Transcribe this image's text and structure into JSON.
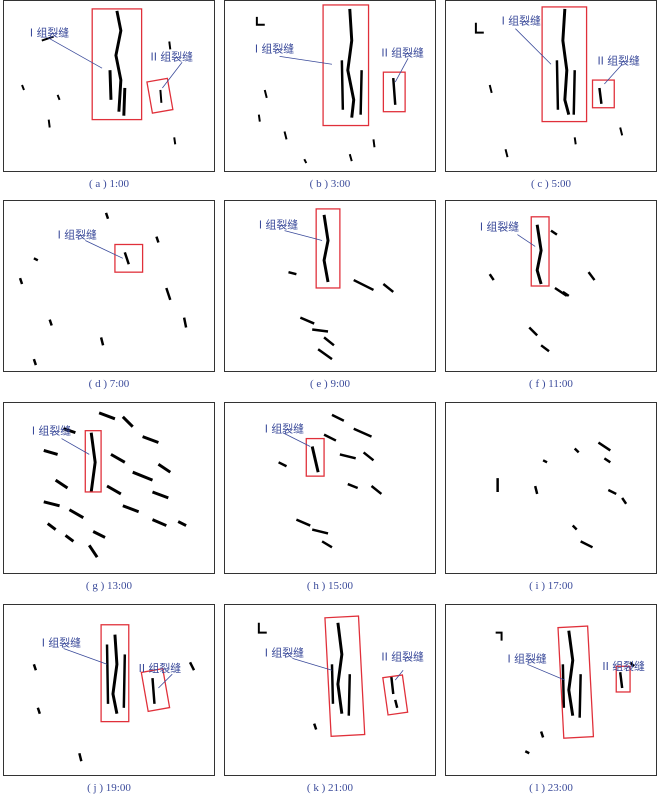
{
  "figure": {
    "group_one_label": "I 组裂缝",
    "group_two_label": "II 组裂缝",
    "panels": [
      {
        "id": "a",
        "caption": "( a ) 1:00"
      },
      {
        "id": "b",
        "caption": "( b ) 3:00"
      },
      {
        "id": "c",
        "caption": "( c ) 5:00"
      },
      {
        "id": "d",
        "caption": "( d ) 7:00"
      },
      {
        "id": "e",
        "caption": "( e ) 9:00"
      },
      {
        "id": "f",
        "caption": "( f ) 11:00"
      },
      {
        "id": "g",
        "caption": "( g ) 13:00"
      },
      {
        "id": "h",
        "caption": "( h ) 15:00"
      },
      {
        "id": "i",
        "caption": "( i ) 17:00"
      },
      {
        "id": "j",
        "caption": "( j ) 19:00"
      },
      {
        "id": "k",
        "caption": "( k ) 21:00"
      },
      {
        "id": "l",
        "caption": "( l ) 23:00"
      }
    ]
  },
  "colors": {
    "annotation": "#3a4a9a",
    "box": "#e0303a",
    "crack": "#000000"
  }
}
